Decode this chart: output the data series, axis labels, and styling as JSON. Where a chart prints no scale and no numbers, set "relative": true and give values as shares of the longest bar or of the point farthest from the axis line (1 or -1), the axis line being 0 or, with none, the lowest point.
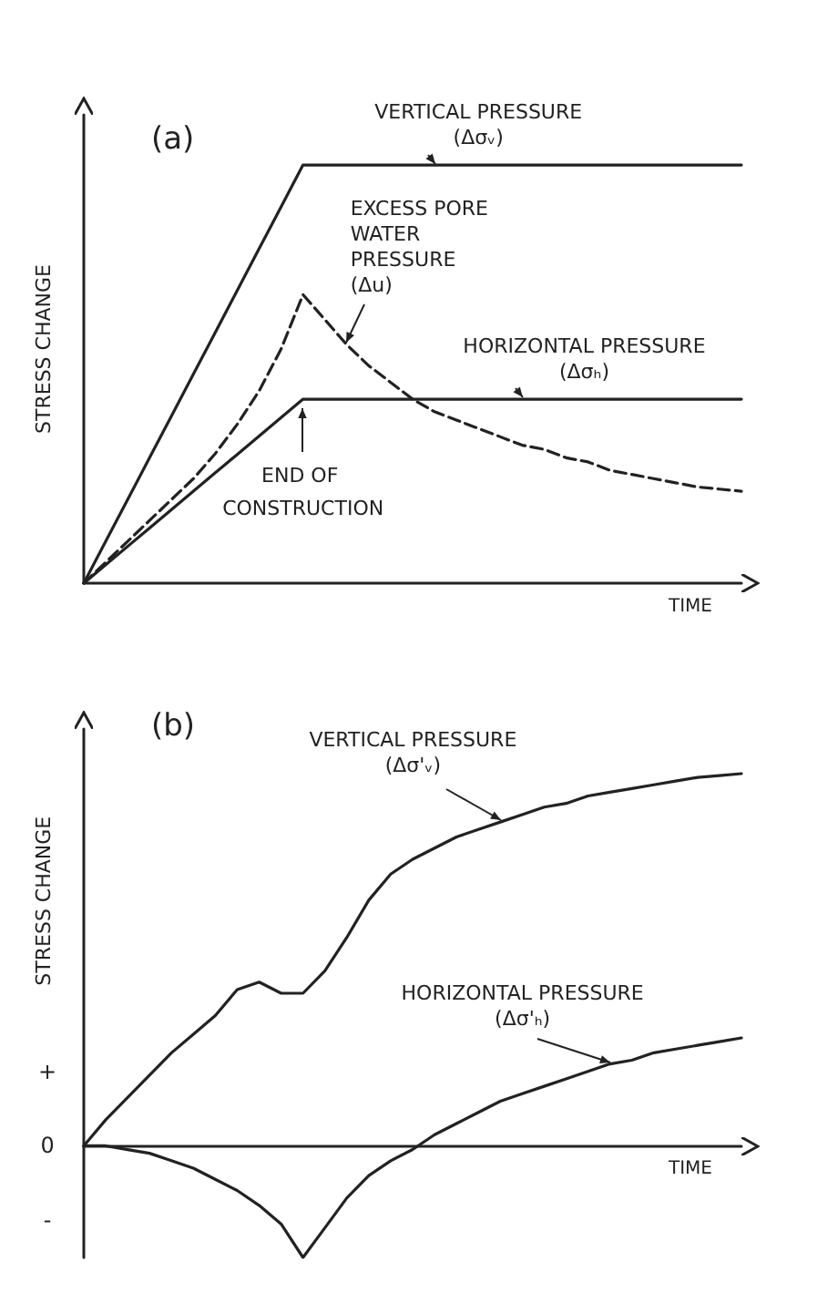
{
  "chart_data": [
    {
      "type": "line",
      "title": "(a)",
      "xlabel": "TIME",
      "ylabel": "STRESS CHANGE",
      "relative": true,
      "marker": "none",
      "categories": [
        null,
        null,
        null,
        null,
        null,
        null,
        null,
        null,
        null,
        null,
        null,
        null,
        null,
        null,
        null,
        null,
        null,
        null,
        null,
        null,
        null,
        null,
        null,
        null,
        null,
        null,
        null,
        null,
        null,
        null,
        null
      ],
      "series": [
        {
          "name": "VERTICAL PRESSURE (Δσᵥ)",
          "color": "#222222",
          "line_style": "solid",
          "values": [
            0,
            0.1,
            0.2,
            0.3,
            0.4,
            0.5,
            0.6,
            0.7,
            0.8,
            0.9,
            1,
            1,
            1,
            1,
            1,
            1,
            1,
            1,
            1,
            1,
            1,
            1,
            1,
            1,
            1,
            1,
            1,
            1,
            1,
            1,
            1
          ]
        },
        {
          "name": "EXCESS PORE WATER PRESSURE (Δu)",
          "color": "#222222",
          "line_style": "dashed",
          "values": [
            0,
            0.05,
            0.1,
            0.15,
            0.2,
            0.25,
            0.31,
            0.38,
            0.46,
            0.56,
            0.69,
            0.63,
            0.57,
            0.52,
            0.48,
            0.44,
            0.41,
            0.39,
            0.37,
            0.35,
            0.33,
            0.32,
            0.3,
            0.29,
            0.27,
            0.26,
            0.25,
            0.24,
            0.23,
            0.225,
            0.22
          ]
        },
        {
          "name": "HORIZONTAL PRESSURE (Δσₕ)",
          "color": "#222222",
          "line_style": "solid",
          "values": [
            0,
            0.044,
            0.088,
            0.132,
            0.176,
            0.22,
            0.264,
            0.308,
            0.352,
            0.396,
            0.44,
            0.44,
            0.44,
            0.44,
            0.44,
            0.44,
            0.44,
            0.44,
            0.44,
            0.44,
            0.44,
            0.44,
            0.44,
            0.44,
            0.44,
            0.44,
            0.44,
            0.44,
            0.44,
            0.44,
            0.44
          ]
        }
      ],
      "annotations": [
        "END OF CONSTRUCTION"
      ]
    },
    {
      "type": "line",
      "title": "(b)",
      "xlabel": "TIME",
      "ylabel": "STRESS CHANGE",
      "relative": true,
      "marker": "none",
      "categories": [
        null,
        null,
        null,
        null,
        null,
        null,
        null,
        null,
        null,
        null,
        null,
        null,
        null,
        null,
        null,
        null,
        null,
        null,
        null,
        null,
        null,
        null,
        null,
        null,
        null,
        null,
        null,
        null,
        null,
        null,
        null
      ],
      "series": [
        {
          "name": "VERTICAL PRESSURE (Δσ'ᵥ)",
          "color": "#222222",
          "line_style": "solid",
          "values": [
            0,
            0.07,
            0.13,
            0.19,
            0.25,
            0.3,
            0.35,
            0.42,
            0.44,
            0.41,
            0.41,
            0.47,
            0.56,
            0.66,
            0.73,
            0.77,
            0.8,
            0.83,
            0.85,
            0.87,
            0.89,
            0.91,
            0.92,
            0.94,
            0.95,
            0.96,
            0.97,
            0.98,
            0.99,
            0.995,
            1
          ]
        },
        {
          "name": "HORIZONTAL PRESSURE (Δσ'ₕ)",
          "color": "#222222",
          "line_style": "solid",
          "values": [
            0,
            0,
            -0.01,
            -0.02,
            -0.04,
            -0.06,
            -0.09,
            -0.12,
            -0.16,
            -0.21,
            -0.3,
            -0.22,
            -0.14,
            -0.08,
            -0.04,
            -0.01,
            0.03,
            0.06,
            0.09,
            0.12,
            0.14,
            0.16,
            0.18,
            0.2,
            0.22,
            0.23,
            0.25,
            0.26,
            0.27,
            0.28,
            0.29
          ]
        }
      ],
      "annotations": [
        "+",
        "0",
        "-"
      ]
    }
  ]
}
